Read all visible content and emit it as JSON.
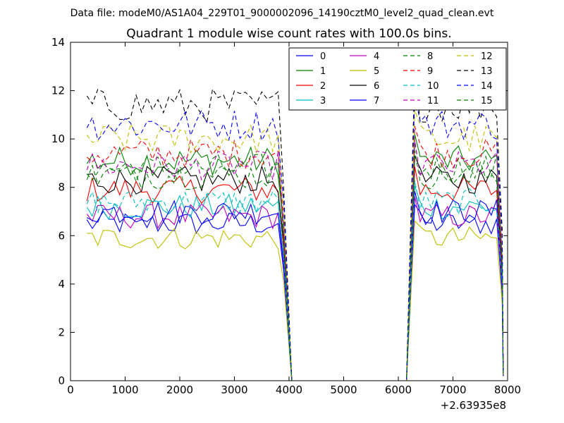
{
  "chart_data": {
    "type": "line",
    "suptitle": "Data file: modeM0/AS1A04_229T01_9000002096_14190cztM0_level2_quad_clean.evt",
    "title": "Quadrant 1 module wise count rates with 100.0s bins.",
    "xlabel": "",
    "ylabel": "",
    "x_offset_label": "+2.63935e8",
    "xlim": [
      0,
      8000
    ],
    "ylim": [
      0,
      14
    ],
    "xticks": [
      "0",
      "1000",
      "2000",
      "3000",
      "4000",
      "5000",
      "6000",
      "7000",
      "8000"
    ],
    "yticks": [
      "0",
      "2",
      "4",
      "6",
      "8",
      "10",
      "12",
      "14"
    ],
    "grid": false,
    "legend_position": "top-right",
    "legend_columns": 4,
    "gap": {
      "drop_start": 3900,
      "zero_start": 4050,
      "zero_end": 6150,
      "rise_end": 6300
    },
    "segments": [
      {
        "x_start": 300,
        "x_end": 3800
      },
      {
        "x_start": 6300,
        "x_end": 7900
      }
    ],
    "series": [
      {
        "name": "0",
        "color": "#0000ff",
        "style": "solid",
        "level": 6.5
      },
      {
        "name": "1",
        "color": "#008000",
        "style": "solid",
        "level": 9.1
      },
      {
        "name": "2",
        "color": "#ff0000",
        "style": "solid",
        "level": 7.9
      },
      {
        "name": "3",
        "color": "#00bfbf",
        "style": "solid",
        "level": 7.2
      },
      {
        "name": "4",
        "color": "#bf00bf",
        "style": "solid",
        "level": 6.8
      },
      {
        "name": "5",
        "color": "#bfbf00",
        "style": "solid",
        "level": 5.9
      },
      {
        "name": "6",
        "color": "#000000",
        "style": "solid",
        "level": 8.3
      },
      {
        "name": "7",
        "color": "#0000ff",
        "style": "solid",
        "level": 7.0
      },
      {
        "name": "8",
        "color": "#008000",
        "style": "dashed",
        "level": 8.8
      },
      {
        "name": "9",
        "color": "#ff0000",
        "style": "dashed",
        "level": 9.4
      },
      {
        "name": "10",
        "color": "#00bfbf",
        "style": "dashed",
        "level": 7.4
      },
      {
        "name": "11",
        "color": "#bf00bf",
        "style": "dashed",
        "level": 8.9
      },
      {
        "name": "12",
        "color": "#bfbf00",
        "style": "dashed",
        "level": 10.0
      },
      {
        "name": "13",
        "color": "#000000",
        "style": "dashed",
        "level": 11.4
      },
      {
        "name": "14",
        "color": "#0000ff",
        "style": "dashed",
        "level": 10.6
      },
      {
        "name": "15",
        "color": "#008000",
        "style": "dashed",
        "level": 8.5
      }
    ]
  }
}
